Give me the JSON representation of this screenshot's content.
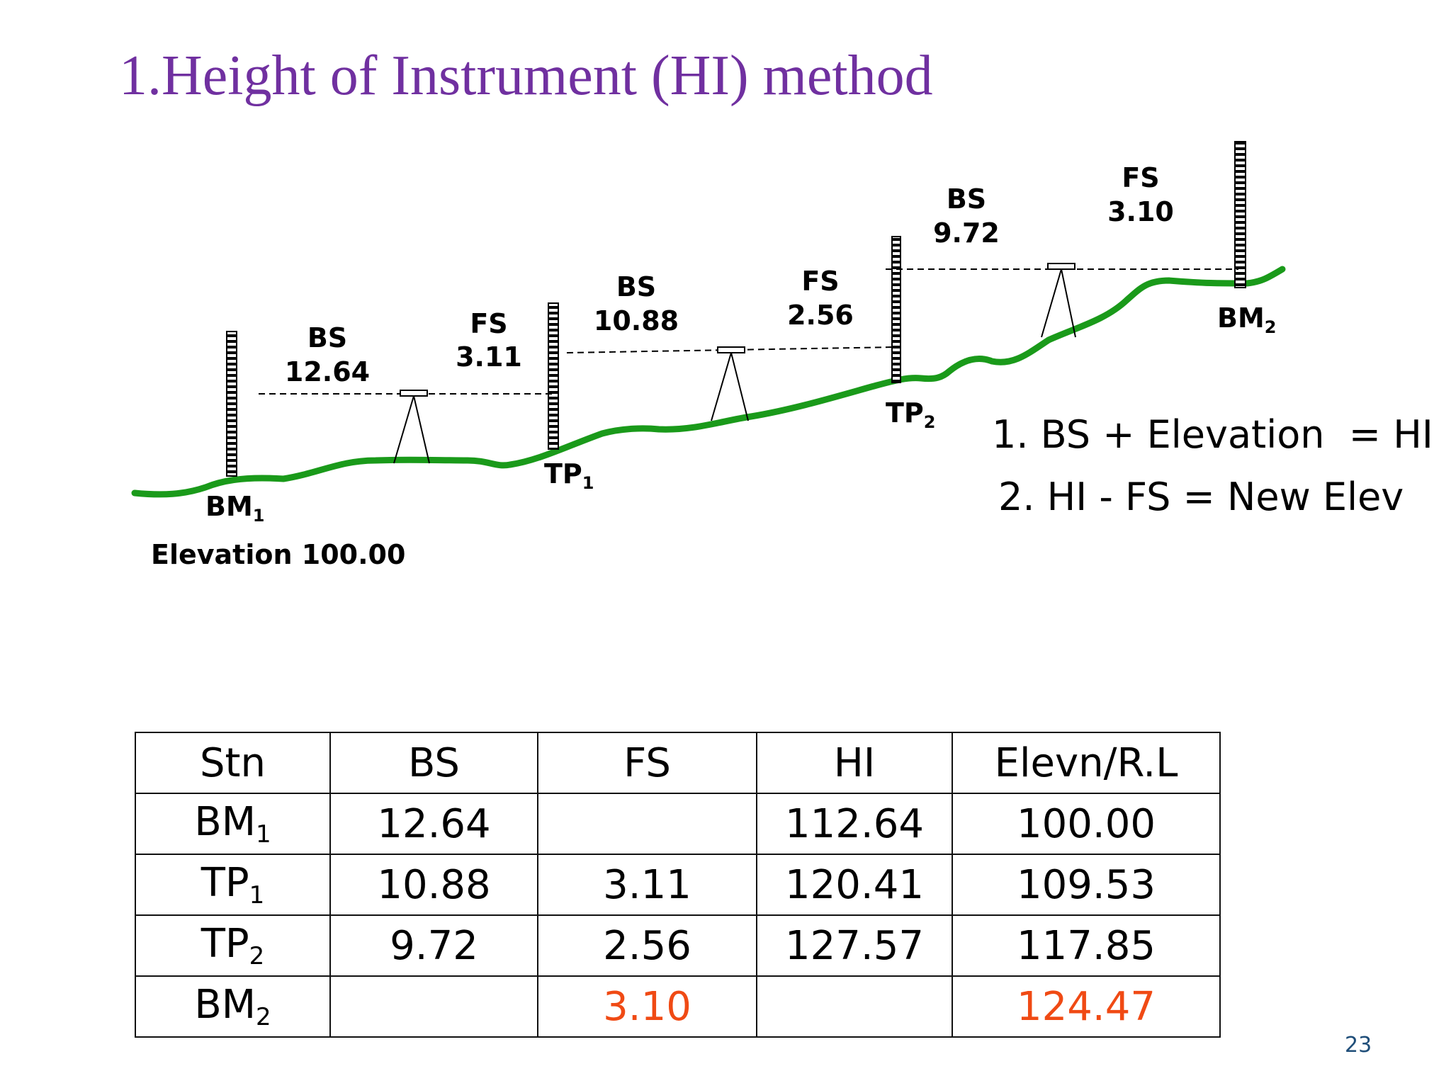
{
  "title": "1.Height of Instrument (HI) method",
  "colors": {
    "title": "#7030a0",
    "ground": "#1a9a1a",
    "highlight": "#f04a14",
    "page_number": "#1f4e79"
  },
  "diagram": {
    "bm1": {
      "name": "BM",
      "sub": "1",
      "elevation_label": "Elevation 100.00"
    },
    "tp1": {
      "name": "TP",
      "sub": "1"
    },
    "tp2": {
      "name": "TP",
      "sub": "2"
    },
    "bm2": {
      "name": "BM",
      "sub": "2"
    },
    "setup1": {
      "bs_label": "BS",
      "bs_value": "12.64",
      "fs_label": "FS",
      "fs_value": "3.11"
    },
    "setup2": {
      "bs_label": "BS",
      "bs_value": "10.88",
      "fs_label": "FS",
      "fs_value": "2.56"
    },
    "setup3": {
      "bs_label": "BS",
      "bs_value": "9.72",
      "fs_label": "FS",
      "fs_value": "3.10"
    },
    "formulas": [
      "1. BS + Elevation  = HI",
      "2. HI - FS = New Elev"
    ]
  },
  "table": {
    "headers": [
      "Stn",
      "BS",
      "FS",
      "HI",
      "Elevn/R.L"
    ],
    "rows": [
      {
        "stn": "BM",
        "stn_sub": "1",
        "bs": "12.64",
        "fs": "",
        "hi": "112.64",
        "elev": "100.00"
      },
      {
        "stn": "TP",
        "stn_sub": "1",
        "bs": "10.88",
        "fs": "3.11",
        "hi": "120.41",
        "elev": "109.53"
      },
      {
        "stn": "TP",
        "stn_sub": "2",
        "bs": "9.72",
        "fs": "2.56",
        "hi": "127.57",
        "elev": "117.85"
      },
      {
        "stn": "BM",
        "stn_sub": "2",
        "bs": "",
        "fs": "3.10",
        "hi": "",
        "elev": "124.47"
      }
    ]
  },
  "page_number": "23"
}
